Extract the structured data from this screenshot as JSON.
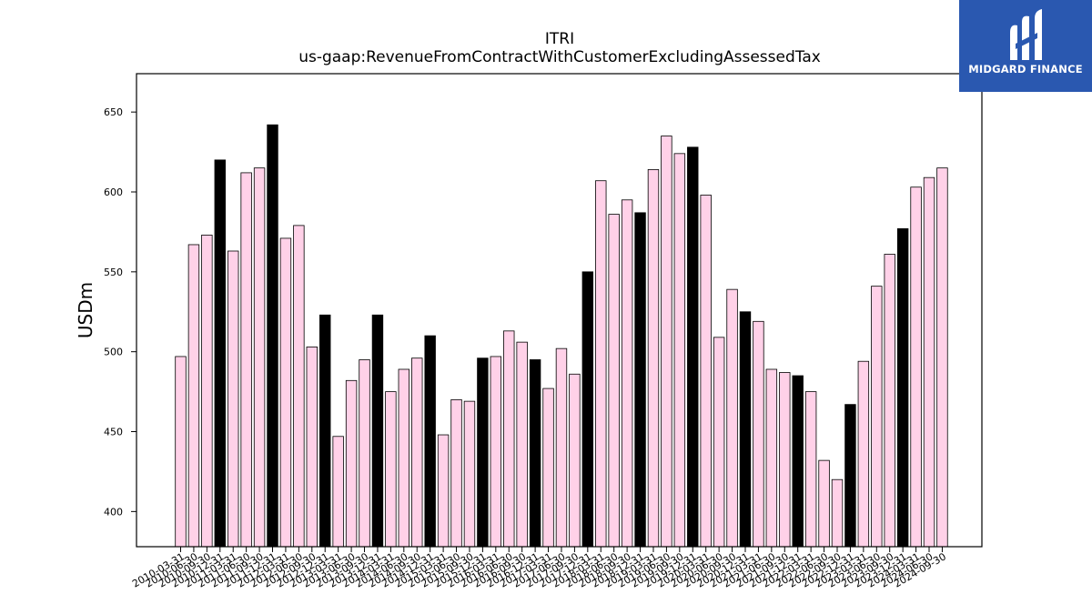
{
  "logo": {
    "brand": "MIDGARD FINANCE",
    "mark": "M"
  },
  "chart_data": {
    "type": "bar",
    "title": "ITRI",
    "subtitle": "us-gaap:RevenueFromContractWithCustomerExcludingAssessedTax",
    "xlabel": "",
    "ylabel": "USDm",
    "ylim": [
      378,
      674
    ],
    "yticks": [
      400,
      450,
      500,
      550,
      600,
      650
    ],
    "grid": false,
    "colors": {
      "quarter": "#ffd1e8",
      "fiscal_year_end": "#000000",
      "edge": "#000000"
    },
    "categories": [
      "2010-03-31",
      "2010-06-30",
      "2010-09-30",
      "2010-12-31",
      "2011-03-31",
      "2011-06-30",
      "2011-09-30",
      "2011-12-31",
      "2012-03-31",
      "2012-06-30",
      "2012-09-30",
      "2012-12-31",
      "2013-03-31",
      "2013-06-30",
      "2013-09-30",
      "2013-12-31",
      "2014-03-31",
      "2014-06-30",
      "2014-09-30",
      "2014-12-31",
      "2015-03-31",
      "2015-06-30",
      "2015-09-30",
      "2015-12-31",
      "2016-03-31",
      "2016-06-30",
      "2016-09-30",
      "2016-12-31",
      "2017-03-31",
      "2017-06-30",
      "2017-09-30",
      "2017-12-31",
      "2018-03-31",
      "2018-06-30",
      "2018-09-30",
      "2018-12-31",
      "2019-03-31",
      "2019-06-30",
      "2019-09-30",
      "2019-12-31",
      "2020-03-31",
      "2020-06-30",
      "2020-09-30",
      "2020-12-31",
      "2021-03-31",
      "2021-06-30",
      "2021-09-30",
      "2021-12-31",
      "2022-03-31",
      "2022-06-30",
      "2022-09-30",
      "2022-12-31",
      "2023-03-31",
      "2023-06-30",
      "2023-09-30",
      "2023-12-31",
      "2024-03-31",
      "2024-06-30",
      "2024-09-30"
    ],
    "values": [
      497,
      567,
      573,
      620,
      563,
      612,
      615,
      642,
      571,
      579,
      503,
      523,
      447,
      482,
      495,
      523,
      475,
      489,
      496,
      510,
      448,
      470,
      469,
      496,
      497,
      513,
      506,
      495,
      477,
      502,
      486,
      550,
      607,
      586,
      595,
      587,
      614,
      635,
      624,
      628,
      598,
      509,
      539,
      525,
      519,
      489,
      487,
      485,
      475,
      432,
      420,
      467,
      494,
      541,
      561,
      577,
      603,
      609,
      615
    ],
    "highlighted": [
      3,
      7,
      11,
      15,
      19,
      23,
      27,
      31,
      35,
      39,
      43,
      47,
      51,
      55
    ]
  }
}
